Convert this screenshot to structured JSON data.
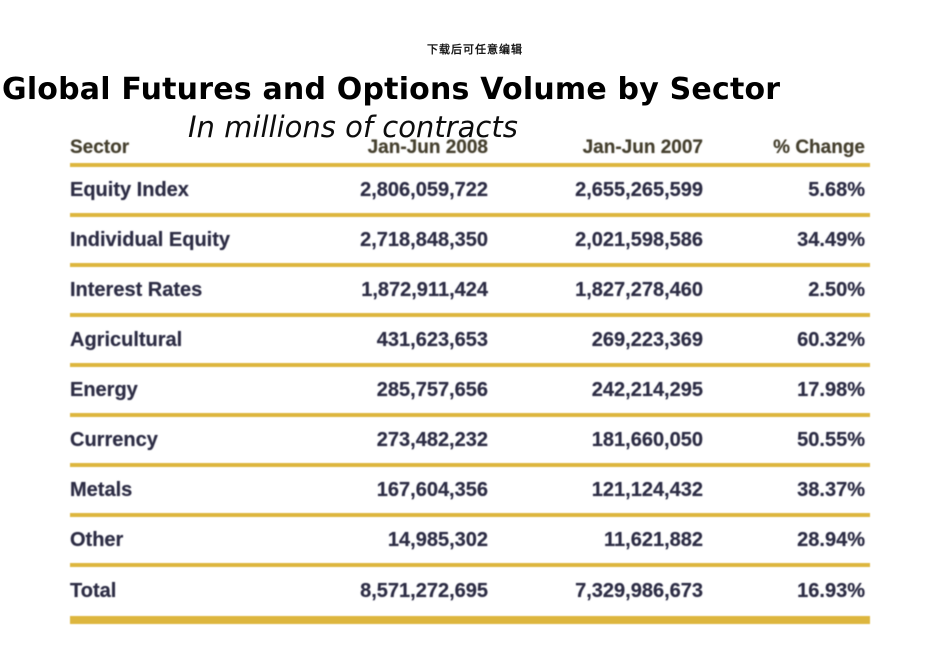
{
  "page": {
    "watermark": "下载后可任意编辑",
    "title": "Global Futures and Options Volume by Sector",
    "subtitle": "In millions of contracts"
  },
  "colors": {
    "rule_gold": "#ddb63e",
    "table_text": "#2d2d44",
    "header_text": "#45402f",
    "background": "#ffffff"
  },
  "table": {
    "columns": [
      "Sector",
      "Jan-Jun 2008",
      "Jan-Jun 2007",
      "% Change"
    ],
    "rows": [
      {
        "sector": "Equity Index",
        "v2008": "2,806,059,722",
        "v2007": "2,655,265,599",
        "change": "5.68%"
      },
      {
        "sector": "Individual Equity",
        "v2008": "2,718,848,350",
        "v2007": "2,021,598,586",
        "change": "34.49%"
      },
      {
        "sector": "Interest Rates",
        "v2008": "1,872,911,424",
        "v2007": "1,827,278,460",
        "change": "2.50%"
      },
      {
        "sector": "Agricultural",
        "v2008": "431,623,653",
        "v2007": "269,223,369",
        "change": "60.32%"
      },
      {
        "sector": "Energy",
        "v2008": "285,757,656",
        "v2007": "242,214,295",
        "change": "17.98%"
      },
      {
        "sector": "Currency",
        "v2008": "273,482,232",
        "v2007": "181,660,050",
        "change": "50.55%"
      },
      {
        "sector": "Metals",
        "v2008": "167,604,356",
        "v2007": "121,124,432",
        "change": "38.37%"
      },
      {
        "sector": "Other",
        "v2008": "14,985,302",
        "v2007": "11,621,882",
        "change": "28.94%"
      }
    ],
    "total_row": {
      "sector": "Total",
      "v2008": "8,571,272,695",
      "v2007": "7,329,986,673",
      "change": "16.93%"
    }
  },
  "chart_data": {
    "type": "table",
    "title": "Global Futures and Options Volume by Sector",
    "subtitle": "In millions of contracts",
    "columns": [
      "Sector",
      "Jan-Jun 2008",
      "Jan-Jun 2007",
      "% Change"
    ],
    "rows": [
      [
        "Equity Index",
        2806059722,
        2655265599,
        5.68
      ],
      [
        "Individual Equity",
        2718848350,
        2021598586,
        34.49
      ],
      [
        "Interest Rates",
        1872911424,
        1827278460,
        2.5
      ],
      [
        "Agricultural",
        431623653,
        269223369,
        60.32
      ],
      [
        "Energy",
        285757656,
        242214295,
        17.98
      ],
      [
        "Currency",
        273482232,
        181660050,
        50.55
      ],
      [
        "Metals",
        167604356,
        121124432,
        38.37
      ],
      [
        "Other",
        14985302,
        11621882,
        28.94
      ],
      [
        "Total",
        8571272695,
        7329986673,
        16.93
      ]
    ]
  }
}
